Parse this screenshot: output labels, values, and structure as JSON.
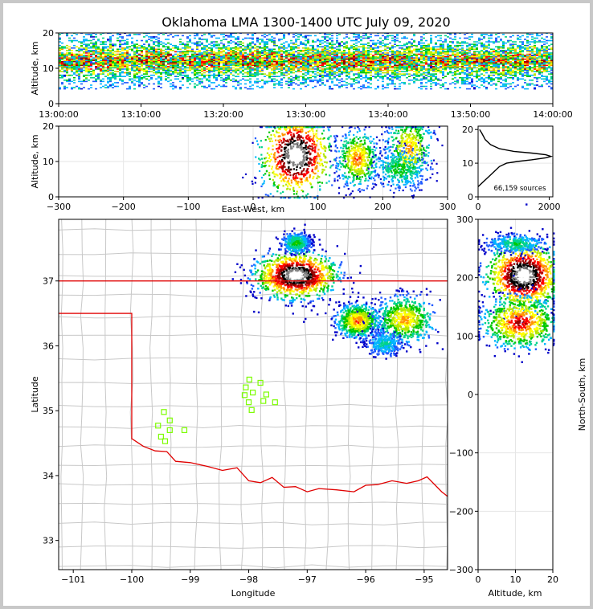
{
  "title": "Oklahoma LMA 1300-1400 UTC July 09, 2020",
  "colors": {
    "border": "#e00000",
    "county": "#c8c8c8",
    "station": "#7cfc00",
    "axis": "#000000"
  },
  "chart_data": [
    {
      "type": "heatmap",
      "name": "altitude-time",
      "xlabel": "",
      "ylabel": "Altitude, km",
      "x_ticks": [
        "13:00:00",
        "13:10:00",
        "13:20:00",
        "13:30:00",
        "13:40:00",
        "13:50:00",
        "14:00:00"
      ],
      "y_ticks": [
        "0",
        "10",
        "20"
      ],
      "xlim": [
        "13:00:00",
        "14:00:00"
      ],
      "ylim": [
        0,
        20
      ],
      "band_km": [
        4,
        20
      ],
      "peak_km": 12
    },
    {
      "type": "heatmap",
      "name": "altitude-eastwest",
      "xlabel": "East-West, km",
      "ylabel": "Altitude, km",
      "x_ticks": [
        "−300",
        "−200",
        "−100",
        "0",
        "100",
        "200",
        "300"
      ],
      "y_ticks": [
        "0",
        "10",
        "20"
      ],
      "xlim": [
        -300,
        300
      ],
      "ylim": [
        0,
        20
      ],
      "clusters": [
        {
          "x": 65,
          "z": 12,
          "sx": 28,
          "sz": 6,
          "w": 1.0
        },
        {
          "x": 160,
          "z": 11,
          "sx": 16,
          "sz": 4,
          "w": 0.6
        },
        {
          "x": 240,
          "z": 14,
          "sx": 18,
          "sz": 5,
          "w": 0.55
        },
        {
          "x": 225,
          "z": 8,
          "sx": 20,
          "sz": 3,
          "w": 0.35
        }
      ]
    },
    {
      "type": "line",
      "name": "altitude-histogram",
      "x_ticks": [
        "0",
        "2000"
      ],
      "y_ticks": [
        "0",
        "10",
        "20"
      ],
      "xlim": [
        0,
        2100
      ],
      "ylim": [
        0,
        21
      ],
      "annotation": "66,159 sources",
      "points": [
        [
          0,
          3
        ],
        [
          150,
          4.5
        ],
        [
          300,
          6
        ],
        [
          450,
          7.5
        ],
        [
          600,
          9
        ],
        [
          800,
          10
        ],
        [
          1100,
          10.5
        ],
        [
          1500,
          11
        ],
        [
          1900,
          11.6
        ],
        [
          2050,
          12
        ],
        [
          1900,
          12.5
        ],
        [
          1500,
          13
        ],
        [
          1000,
          13.5
        ],
        [
          600,
          14.3
        ],
        [
          350,
          15.5
        ],
        [
          200,
          17
        ],
        [
          100,
          19
        ],
        [
          40,
          20
        ]
      ]
    },
    {
      "type": "heatmap",
      "name": "plan-view",
      "xlabel": "Longitude",
      "ylabel": "Latitude",
      "x_ticks": [
        "−101",
        "−100",
        "−99",
        "−98",
        "−97",
        "−96",
        "−95"
      ],
      "y_ticks": [
        "33",
        "34",
        "35",
        "36",
        "37"
      ],
      "xlim": [
        -101.25,
        -94.6
      ],
      "ylim": [
        32.55,
        37.95
      ],
      "clusters": [
        {
          "lon": -97.2,
          "lat": 37.1,
          "sx": 0.35,
          "sy": 0.18,
          "w": 1.0
        },
        {
          "lon": -97.2,
          "lat": 37.6,
          "sx": 0.12,
          "sy": 0.08,
          "w": 0.35
        },
        {
          "lon": -96.15,
          "lat": 36.4,
          "sx": 0.18,
          "sy": 0.13,
          "w": 0.6
        },
        {
          "lon": -95.35,
          "lat": 36.42,
          "sx": 0.25,
          "sy": 0.18,
          "w": 0.55
        },
        {
          "lon": -95.7,
          "lat": 36.05,
          "sx": 0.15,
          "sy": 0.1,
          "w": 0.25
        }
      ],
      "stations": [
        [
          -99.45,
          34.98
        ],
        [
          -99.35,
          34.85
        ],
        [
          -99.55,
          34.77
        ],
        [
          -99.35,
          34.7
        ],
        [
          -99.5,
          34.6
        ],
        [
          -99.43,
          34.53
        ],
        [
          -99.1,
          34.7
        ],
        [
          -97.99,
          35.48
        ],
        [
          -98.05,
          35.36
        ],
        [
          -97.93,
          35.28
        ],
        [
          -98.07,
          35.24
        ],
        [
          -97.8,
          35.43
        ],
        [
          -97.7,
          35.25
        ],
        [
          -98.0,
          35.13
        ],
        [
          -97.75,
          35.15
        ],
        [
          -97.55,
          35.13
        ],
        [
          -97.95,
          35.01
        ]
      ]
    },
    {
      "type": "heatmap",
      "name": "northsouth-altitude",
      "xlabel": "Altitude, km",
      "ylabel": "North-South, km",
      "x_ticks": [
        "0",
        "10",
        "20"
      ],
      "y_ticks": [
        "300",
        "200",
        "100",
        "0",
        "−100",
        "−200",
        "−300"
      ],
      "xlim": [
        0,
        20
      ],
      "ylim": [
        -300,
        300
      ],
      "clusters": [
        {
          "z": 12,
          "y": 205,
          "sz": 5,
          "sy": 28,
          "w": 1.0
        },
        {
          "z": 11,
          "y": 125,
          "sz": 5,
          "sy": 22,
          "w": 0.7
        },
        {
          "z": 10,
          "y": 260,
          "sz": 4,
          "sy": 8,
          "w": 0.3
        }
      ]
    }
  ]
}
